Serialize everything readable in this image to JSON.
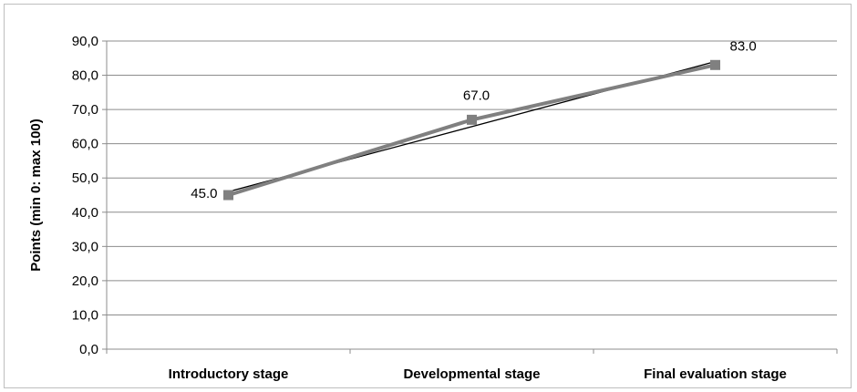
{
  "chart_data": {
    "type": "line",
    "title": "",
    "xlabel": "",
    "ylabel": "Points (min 0: max 100)",
    "categories": [
      "Introductory stage",
      "Developmental stage",
      "Final evaluation stage"
    ],
    "series": [
      {
        "values": [
          45.0,
          67.0,
          83.0
        ],
        "data_labels": [
          "45.0",
          "67.0",
          "83.0"
        ],
        "color": "#808080",
        "marker": "square"
      }
    ],
    "trendline": {
      "type": "linear",
      "color": "#000000"
    },
    "ylim": [
      0,
      90
    ],
    "y_ticks": [
      0,
      10,
      20,
      30,
      40,
      50,
      60,
      70,
      80,
      90
    ],
    "y_tick_labels": [
      "0,0",
      "10,0",
      "20,0",
      "30,0",
      "40,0",
      "50,0",
      "60,0",
      "70,0",
      "80,0",
      "90,0"
    ],
    "grid": true,
    "legend": "none"
  }
}
